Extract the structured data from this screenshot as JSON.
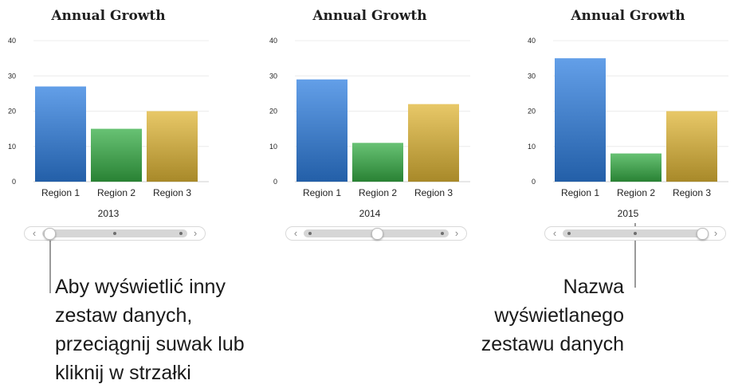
{
  "chart_data": [
    {
      "type": "bar",
      "title": "Annual Growth",
      "categories": [
        "Region 1",
        "Region 2",
        "Region 3"
      ],
      "values": [
        27,
        15,
        20
      ],
      "colors": [
        "#2f7fe0",
        "#36ad45",
        "#e0b636"
      ],
      "ylim": [
        0,
        40
      ],
      "yticks": [
        "0",
        "10",
        "20",
        "30",
        "40"
      ],
      "grid": true,
      "dataset_label": "2013",
      "slider_position": 0
    },
    {
      "type": "bar",
      "title": "Annual Growth",
      "categories": [
        "Region 1",
        "Region 2",
        "Region 3"
      ],
      "values": [
        29,
        11,
        22
      ],
      "colors": [
        "#2f7fe0",
        "#36ad45",
        "#e0b636"
      ],
      "ylim": [
        0,
        40
      ],
      "yticks": [
        "0",
        "10",
        "20",
        "30",
        "40"
      ],
      "grid": true,
      "dataset_label": "2014",
      "slider_position": 0.5
    },
    {
      "type": "bar",
      "title": "Annual Growth",
      "categories": [
        "Region 1",
        "Region 2",
        "Region 3"
      ],
      "values": [
        35,
        8,
        20
      ],
      "colors": [
        "#2f7fe0",
        "#36ad45",
        "#e0b636"
      ],
      "ylim": [
        0,
        40
      ],
      "yticks": [
        "0",
        "10",
        "20",
        "30",
        "40"
      ],
      "grid": true,
      "dataset_label": "2015",
      "slider_position": 1
    }
  ],
  "slider": {
    "prev_arrow": "‹",
    "next_arrow": "›",
    "stops": 3
  },
  "callouts": {
    "left_lines": [
      "Aby wyświetlić inny",
      "zestaw danych,",
      "przeciągnij suwak lub",
      "kliknij w strzałki"
    ],
    "right_lines": [
      "Nazwa",
      "wyświetlanego",
      "zestawu danych"
    ]
  }
}
